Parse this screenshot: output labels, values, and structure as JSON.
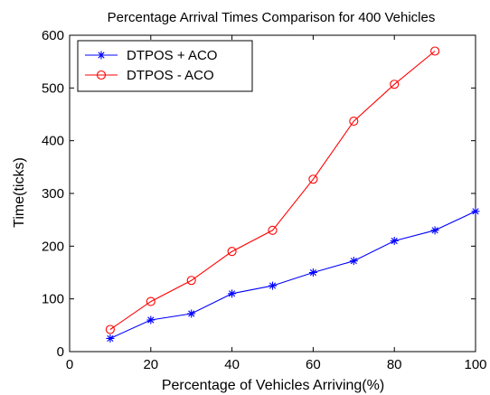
{
  "chart_data": {
    "type": "line",
    "title": "Percentage Arrival Times Comparison for 400 Vehicles",
    "xlabel": "Percentage of Vehicles Arriving(%)",
    "ylabel": "Time(ticks)",
    "xlim": [
      0,
      100
    ],
    "ylim": [
      0,
      600
    ],
    "xticks": [
      0,
      20,
      40,
      60,
      80,
      100
    ],
    "yticks": [
      0,
      100,
      200,
      300,
      400,
      500,
      600
    ],
    "grid": false,
    "legend_position": "top-left",
    "series": [
      {
        "name": "DTPOS + ACO",
        "color": "#0000ff",
        "marker": "star",
        "x": [
          10,
          20,
          30,
          40,
          50,
          60,
          70,
          80,
          90,
          100
        ],
        "y": [
          25,
          60,
          72,
          110,
          125,
          150,
          172,
          210,
          230,
          266
        ]
      },
      {
        "name": "DTPOS - ACO",
        "color": "#ff0000",
        "marker": "circle",
        "x": [
          10,
          20,
          30,
          40,
          50,
          60,
          70,
          80,
          90
        ],
        "y": [
          42,
          95,
          135,
          190,
          230,
          327,
          437,
          507,
          570
        ]
      }
    ]
  }
}
